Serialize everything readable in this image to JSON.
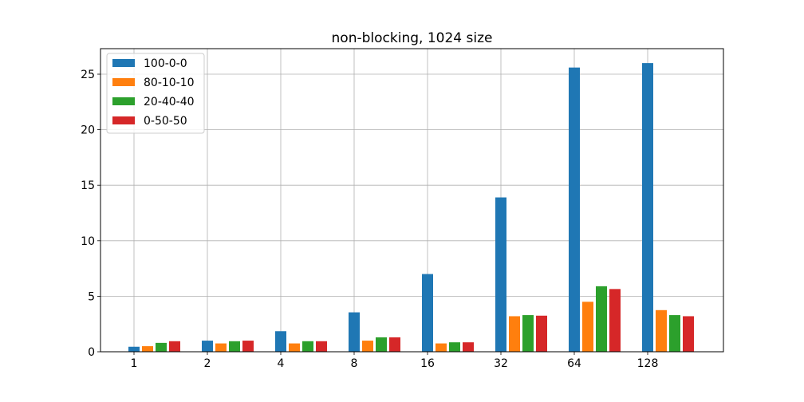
{
  "chart_data": {
    "type": "bar",
    "title": "non-blocking, 1024 size",
    "xlabel": "",
    "ylabel": "",
    "categories": [
      "1",
      "2",
      "4",
      "8",
      "16",
      "32",
      "64",
      "128"
    ],
    "series": [
      {
        "name": "100-0-0",
        "color": "#1f77b4",
        "values": [
          0.45,
          1.0,
          1.85,
          3.55,
          7.0,
          13.9,
          25.6,
          26.0
        ]
      },
      {
        "name": "80-10-10",
        "color": "#ff7f0e",
        "values": [
          0.5,
          0.75,
          0.75,
          1.0,
          0.75,
          3.2,
          4.5,
          3.75
        ]
      },
      {
        "name": "20-40-40",
        "color": "#2ca02c",
        "values": [
          0.8,
          0.95,
          0.95,
          1.3,
          0.85,
          3.3,
          5.9,
          3.3
        ]
      },
      {
        "name": "0-50-50",
        "color": "#d62728",
        "values": [
          0.95,
          1.0,
          0.95,
          1.3,
          0.85,
          3.25,
          5.65,
          3.2
        ]
      }
    ],
    "yticks": [
      "0",
      "5",
      "10",
      "15",
      "20",
      "25"
    ],
    "ylim": [
      0,
      27.3
    ],
    "grid": true,
    "legend_position": "upper-left"
  }
}
